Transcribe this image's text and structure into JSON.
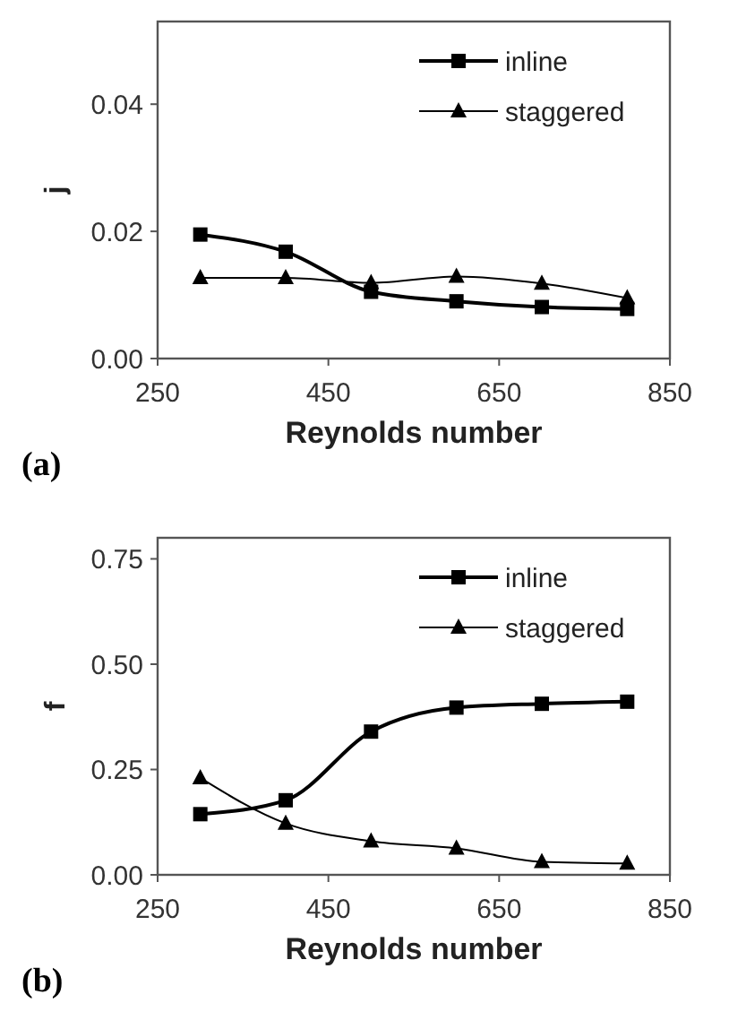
{
  "chart_data": [
    {
      "type": "line",
      "xlabel": "Reynolds number",
      "ylabel": "j",
      "annotations": [
        "(a)"
      ],
      "x": [
        300,
        400,
        500,
        600,
        700,
        800
      ],
      "xlim": [
        250,
        850
      ],
      "xticks": [
        250,
        450,
        650,
        850
      ],
      "ylim": [
        0,
        0.053
      ],
      "yticks": [
        {
          "value": 0,
          "label": "0.00"
        },
        {
          "value": 0.02,
          "label": "0.02"
        },
        {
          "value": 0.04,
          "label": "0.04"
        }
      ],
      "legend": "top right",
      "grid": false,
      "series": [
        {
          "name": "inline",
          "color": "#000000",
          "marker": "square",
          "values": [
            0.0195,
            0.0168,
            0.0105,
            0.009,
            0.0081,
            0.0078
          ]
        },
        {
          "name": "staggered",
          "color": "#000000",
          "marker": "triangle",
          "values": [
            0.0127,
            0.0127,
            0.0119,
            0.0129,
            0.0118,
            0.0095
          ]
        }
      ]
    },
    {
      "type": "line",
      "xlabel": "Reynolds number",
      "ylabel": "f",
      "annotations": [
        "(b)"
      ],
      "x": [
        300,
        400,
        500,
        600,
        700,
        800
      ],
      "xlim": [
        250,
        850
      ],
      "xticks": [
        250,
        450,
        650,
        850
      ],
      "ylim": [
        0,
        0.8
      ],
      "yticks": [
        {
          "value": 0,
          "label": "0.00"
        },
        {
          "value": 0.25,
          "label": "0.25"
        },
        {
          "value": 0.5,
          "label": "0.50"
        },
        {
          "value": 0.75,
          "label": "0.75"
        }
      ],
      "legend": "top right",
      "grid": false,
      "series": [
        {
          "name": "inline",
          "color": "#000000",
          "marker": "square",
          "values": [
            0.144,
            0.177,
            0.34,
            0.397,
            0.406,
            0.411
          ]
        },
        {
          "name": "staggered",
          "color": "#000000",
          "marker": "triangle",
          "values": [
            0.23,
            0.122,
            0.08,
            0.063,
            0.031,
            0.027
          ]
        }
      ]
    }
  ]
}
